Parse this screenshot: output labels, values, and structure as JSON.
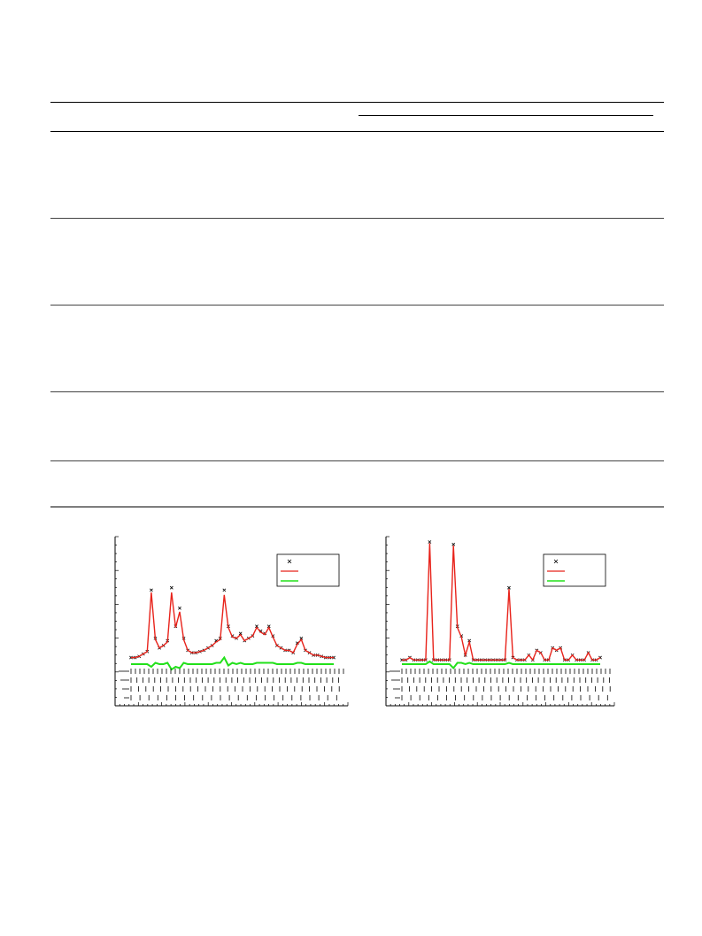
{
  "table": {
    "header_rules": 3,
    "row_count": 5
  },
  "figures": {
    "left": {
      "chart_data": {
        "type": "line",
        "title": "",
        "xlabel": "",
        "ylabel": "",
        "legend_placement": "top-right",
        "series": [
          {
            "marker": "x",
            "color": "#000000"
          },
          {
            "line": "solid",
            "color": "#e8231b"
          },
          {
            "line": "solid",
            "color": "#22e01a"
          }
        ],
        "x": [
          0,
          2,
          4,
          6,
          8,
          10,
          12,
          14,
          16,
          18,
          20,
          22,
          24,
          26,
          28,
          30,
          32,
          34,
          36,
          38,
          40,
          42,
          44,
          46,
          48,
          50,
          52,
          54,
          56,
          58,
          60,
          62,
          64,
          66,
          68,
          70,
          72,
          74,
          76,
          78,
          80,
          82,
          84,
          86,
          88,
          90,
          92,
          94,
          96,
          98,
          100
        ],
        "observed": [
          4,
          4,
          5,
          7,
          9,
          60,
          20,
          12,
          14,
          18,
          62,
          30,
          45,
          20,
          10,
          8,
          8,
          9,
          10,
          12,
          14,
          18,
          20,
          60,
          30,
          22,
          20,
          24,
          18,
          20,
          22,
          30,
          26,
          24,
          30,
          22,
          14,
          12,
          10,
          10,
          8,
          16,
          20,
          10,
          8,
          6,
          6,
          5,
          4,
          4,
          4
        ],
        "calculated": [
          4,
          4,
          5,
          7,
          9,
          58,
          19,
          12,
          14,
          17,
          58,
          29,
          42,
          19,
          10,
          8,
          8,
          9,
          10,
          12,
          14,
          17,
          19,
          56,
          29,
          21,
          20,
          23,
          18,
          20,
          22,
          29,
          25,
          23,
          29,
          21,
          14,
          12,
          10,
          10,
          8,
          15,
          19,
          10,
          8,
          6,
          6,
          5,
          4,
          4,
          4
        ],
        "difference": [
          0,
          0,
          0,
          0,
          0,
          -2,
          1,
          0,
          0,
          1,
          -4,
          -2,
          -3,
          1,
          0,
          0,
          0,
          0,
          0,
          0,
          0,
          1,
          1,
          5,
          -1,
          1,
          0,
          1,
          0,
          0,
          0,
          1,
          1,
          1,
          1,
          1,
          0,
          0,
          0,
          0,
          0,
          1,
          1,
          0,
          0,
          0,
          0,
          0,
          0,
          0,
          0
        ],
        "reflection_rows": 4
      }
    },
    "right": {
      "chart_data": {
        "type": "line",
        "title": "",
        "xlabel": "",
        "ylabel": "",
        "legend_placement": "top-right",
        "series": [
          {
            "marker": "x",
            "color": "#000000"
          },
          {
            "line": "solid",
            "color": "#e8231b"
          },
          {
            "line": "solid",
            "color": "#22e01a"
          }
        ],
        "x": [
          0,
          2,
          4,
          6,
          8,
          10,
          12,
          14,
          16,
          18,
          20,
          22,
          24,
          26,
          28,
          30,
          32,
          34,
          36,
          38,
          40,
          42,
          44,
          46,
          48,
          50,
          52,
          54,
          56,
          58,
          60,
          62,
          64,
          66,
          68,
          70,
          72,
          74,
          76,
          78,
          80,
          82,
          84,
          86,
          88,
          90,
          92,
          94,
          96,
          98,
          100
        ],
        "observed": [
          2,
          2,
          4,
          2,
          2,
          2,
          2,
          100,
          2,
          2,
          2,
          2,
          2,
          98,
          30,
          22,
          6,
          18,
          2,
          2,
          2,
          2,
          2,
          2,
          2,
          2,
          2,
          62,
          4,
          2,
          2,
          2,
          6,
          2,
          10,
          8,
          2,
          2,
          12,
          10,
          12,
          2,
          2,
          6,
          2,
          2,
          2,
          8,
          2,
          2,
          4
        ],
        "calculated": [
          2,
          2,
          4,
          2,
          2,
          2,
          2,
          99,
          2,
          2,
          2,
          2,
          2,
          97,
          29,
          21,
          6,
          17,
          2,
          2,
          2,
          2,
          2,
          2,
          2,
          2,
          2,
          61,
          4,
          2,
          2,
          2,
          6,
          2,
          10,
          8,
          2,
          2,
          12,
          10,
          12,
          2,
          2,
          6,
          2,
          2,
          2,
          8,
          2,
          2,
          4
        ],
        "difference": [
          0,
          0,
          0,
          0,
          0,
          0,
          0,
          2,
          0,
          0,
          0,
          0,
          0,
          -3,
          1,
          1,
          0,
          1,
          0,
          0,
          0,
          0,
          0,
          0,
          0,
          0,
          0,
          1,
          0,
          0,
          0,
          0,
          0,
          0,
          0,
          0,
          0,
          0,
          0,
          0,
          0,
          0,
          0,
          0,
          0,
          0,
          0,
          0,
          0,
          0,
          0
        ],
        "reflection_rows": 4
      }
    }
  }
}
